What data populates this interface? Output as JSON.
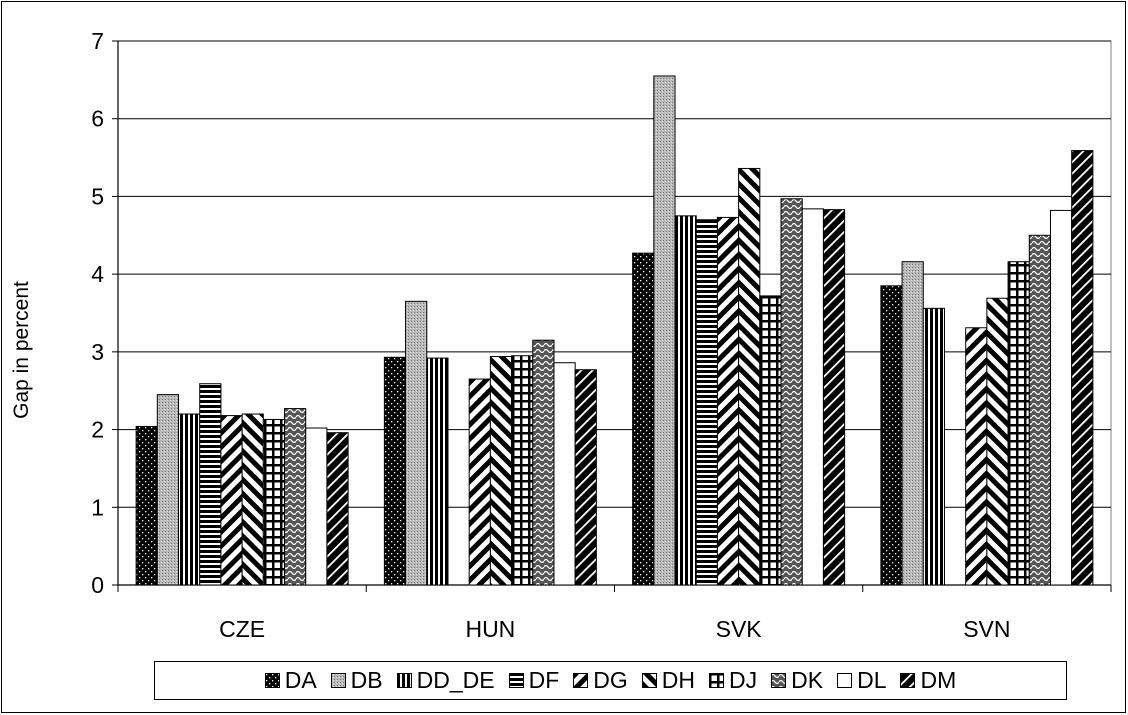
{
  "chart_data": {
    "type": "bar",
    "ylabel": "Gap in percent",
    "xlabel": "",
    "ylim": [
      0,
      7
    ],
    "yticks": [
      "0",
      "1",
      "2",
      "3",
      "4",
      "5",
      "6",
      "7"
    ],
    "grid": true,
    "legend_position": "bottom",
    "categories": [
      "CZE",
      "HUN",
      "SVK",
      "SVN"
    ],
    "series": [
      {
        "name": "DA",
        "values": [
          2.04,
          2.93,
          4.27,
          3.85
        ],
        "pattern": "dots"
      },
      {
        "name": "DB",
        "values": [
          2.45,
          3.65,
          6.55,
          4.16
        ],
        "pattern": "gray"
      },
      {
        "name": "DD_DE",
        "values": [
          2.2,
          2.92,
          4.75,
          3.56
        ],
        "pattern": "vlines"
      },
      {
        "name": "DF",
        "values": [
          2.59,
          null,
          4.7,
          null
        ],
        "pattern": "hlines"
      },
      {
        "name": "DG",
        "values": [
          2.18,
          2.65,
          4.73,
          3.31
        ],
        "pattern": "fwd-diag"
      },
      {
        "name": "DH",
        "values": [
          2.2,
          2.94,
          5.36,
          3.69
        ],
        "pattern": "back-diag"
      },
      {
        "name": "DJ",
        "values": [
          2.13,
          2.95,
          3.72,
          4.16
        ],
        "pattern": "grid"
      },
      {
        "name": "DK",
        "values": [
          2.27,
          3.15,
          4.97,
          4.5
        ],
        "pattern": "wave"
      },
      {
        "name": "DL",
        "values": [
          2.02,
          2.86,
          4.84,
          4.82
        ],
        "pattern": "white"
      },
      {
        "name": "DM",
        "values": [
          1.96,
          2.77,
          4.83,
          5.59
        ],
        "pattern": "dark-diag"
      }
    ]
  }
}
